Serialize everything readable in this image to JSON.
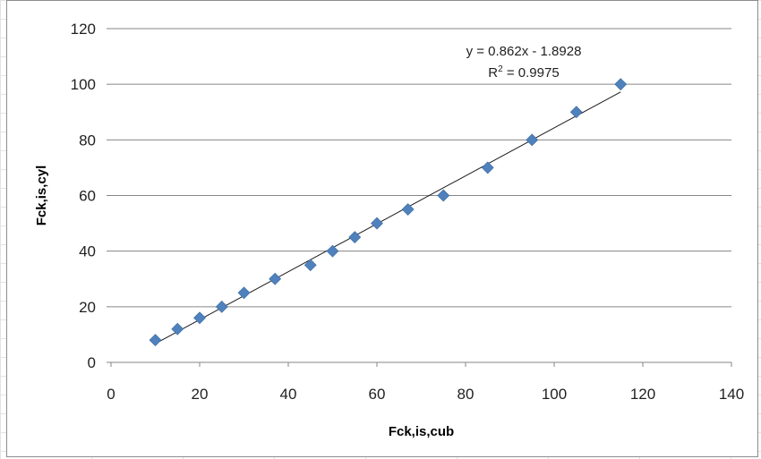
{
  "chart_data": {
    "type": "scatter",
    "xlabel": "Fck,is,cub",
    "ylabel": "Fck,is,cyl",
    "xlim": [
      0,
      140
    ],
    "ylim": [
      0,
      120
    ],
    "xticks": [
      0,
      20,
      40,
      60,
      80,
      100,
      120,
      140
    ],
    "yticks": [
      0,
      20,
      40,
      60,
      80,
      100,
      120
    ],
    "grid": "horizontal major",
    "legend": "none",
    "marker": "diamond",
    "marker_color": "#4f81bd",
    "trendline_color": "#1a1a1a",
    "series": [
      {
        "x": [
          10,
          15,
          20,
          25,
          30,
          37,
          45,
          50,
          55,
          60,
          67,
          75,
          85,
          95,
          105,
          115
        ],
        "y": [
          8,
          12,
          16,
          20,
          25,
          30,
          35,
          40,
          45,
          50,
          55,
          60,
          70,
          80,
          90,
          100
        ]
      }
    ],
    "trendline": {
      "slope": 0.862,
      "intercept": -1.8928,
      "x_range": [
        10,
        115
      ]
    },
    "annotations": {
      "equation": "y = 0.862x - 1.8928",
      "r2_prefix": "R",
      "r2_sup": "2",
      "r2_value": " = 0.9975"
    }
  }
}
